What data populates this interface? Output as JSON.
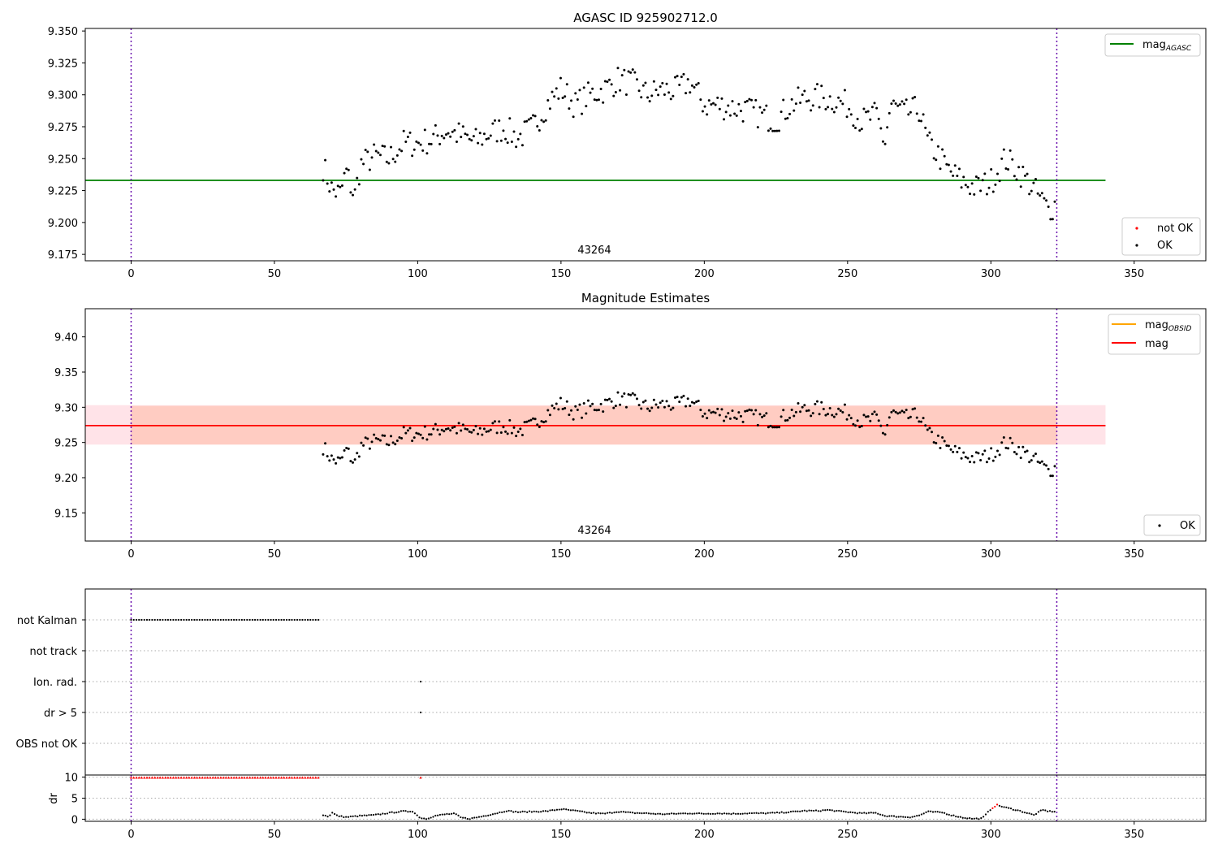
{
  "chart_data": [
    {
      "type": "scatter",
      "title": "AGASC ID 925902712.0",
      "obsid_label": "43264",
      "xlim": [
        -16,
        375
      ],
      "ylim": [
        9.17,
        9.352
      ],
      "xticks": [
        "0",
        "50",
        "100",
        "150",
        "200",
        "250",
        "300",
        "350"
      ],
      "yticks": [
        "9.175",
        "9.200",
        "9.225",
        "9.250",
        "9.275",
        "9.300",
        "9.325",
        "9.350"
      ],
      "vlines_x": [
        0,
        323
      ],
      "hline": {
        "label": "mag",
        "label_sub": "AGASC",
        "y": 9.233,
        "x_range": [
          -16,
          340
        ],
        "color": "#008000"
      },
      "legend_points": [
        {
          "label": "not OK",
          "color": "#ff0000"
        },
        {
          "label": "OK",
          "color": "#000000"
        }
      ],
      "series_ref": "mag_estimates"
    },
    {
      "type": "scatter",
      "title": "Magnitude Estimates",
      "obsid_label": "43264",
      "xlim": [
        -16,
        375
      ],
      "ylim": [
        9.11,
        9.44
      ],
      "xticks": [
        "0",
        "50",
        "100",
        "150",
        "200",
        "250",
        "300",
        "350"
      ],
      "yticks": [
        "9.15",
        "9.20",
        "9.25",
        "9.30",
        "9.35",
        "9.40"
      ],
      "vlines_x": [
        0,
        323
      ],
      "band_outer": {
        "y0": 9.247,
        "y1": 9.303,
        "x_range": [
          -16,
          340
        ],
        "color": "#ffc0cb"
      },
      "band_inner": {
        "y0": 9.247,
        "y1": 9.302,
        "x_range": [
          0,
          323
        ],
        "color": "#ffa07a"
      },
      "lines": [
        {
          "label": "mag",
          "label_sub": "OBSID",
          "y": 9.274,
          "color": "#ffa500"
        },
        {
          "label": "mag",
          "y": 9.274,
          "color": "#ff0000"
        }
      ],
      "legend_points": [
        {
          "label": "OK",
          "color": "#000000"
        }
      ],
      "series_ref": "mag_estimates"
    },
    {
      "type": "scatter",
      "title": "",
      "xlim": [
        -16,
        375
      ],
      "categories": [
        "not Kalman",
        "not track",
        "Ion. rad.",
        "dr > 5",
        "OBS not OK"
      ],
      "flag_points": {
        "not Kalman": {
          "x_start": 0,
          "x_end": 66,
          "step": 0.92
        },
        "Ion. rad.": {
          "x": [
            101
          ]
        },
        "dr > 5": {
          "x": [
            101
          ]
        }
      },
      "vlines_x": [
        0,
        323
      ]
    },
    {
      "type": "scatter",
      "title": "",
      "ylabel": "dr",
      "xlim": [
        -16,
        375
      ],
      "ylim": [
        -0.5,
        10.5
      ],
      "xticks": [
        "0",
        "50",
        "100",
        "150",
        "200",
        "250",
        "300",
        "350"
      ],
      "yticks": [
        "0",
        "5",
        "10"
      ],
      "vlines_x": [
        0,
        323
      ],
      "saturated": {
        "x_start": 0,
        "x_end": 66,
        "step": 0.92,
        "y": 9.9,
        "color": "#ff0000",
        "extra_x": [
          101
        ]
      },
      "dr_segments": [
        [
          67,
          1.0
        ],
        [
          68,
          0.8
        ],
        [
          69,
          0.6
        ],
        [
          70,
          1.6
        ],
        [
          71,
          1.2
        ],
        [
          72,
          0.8
        ],
        [
          75,
          0.5
        ],
        [
          80,
          0.8
        ],
        [
          85,
          1.0
        ],
        [
          90,
          1.5
        ],
        [
          95,
          1.9
        ],
        [
          97,
          1.8
        ],
        [
          98,
          2.0
        ],
        [
          100,
          0.8
        ],
        [
          101,
          0.3
        ],
        [
          103,
          0.1
        ],
        [
          106,
          0.8
        ],
        [
          110,
          1.2
        ],
        [
          113,
          1.3
        ],
        [
          115,
          0.4
        ],
        [
          118,
          0.1
        ],
        [
          122,
          0.6
        ],
        [
          128,
          1.5
        ],
        [
          131,
          2.0
        ],
        [
          135,
          1.7
        ],
        [
          140,
          1.8
        ],
        [
          145,
          1.9
        ],
        [
          150,
          2.4
        ],
        [
          155,
          2.0
        ],
        [
          160,
          1.5
        ],
        [
          165,
          1.3
        ],
        [
          170,
          1.8
        ],
        [
          175,
          1.5
        ],
        [
          180,
          1.4
        ],
        [
          185,
          1.2
        ],
        [
          190,
          1.3
        ],
        [
          195,
          1.4
        ],
        [
          200,
          1.3
        ],
        [
          205,
          1.4
        ],
        [
          210,
          1.3
        ],
        [
          215,
          1.4
        ],
        [
          220,
          1.4
        ],
        [
          225,
          1.5
        ],
        [
          230,
          1.7
        ],
        [
          235,
          2.0
        ],
        [
          240,
          2.0
        ],
        [
          243,
          2.2
        ],
        [
          247,
          1.9
        ],
        [
          250,
          1.7
        ],
        [
          255,
          1.4
        ],
        [
          260,
          1.5
        ],
        [
          263,
          0.8
        ],
        [
          268,
          0.6
        ],
        [
          272,
          0.5
        ],
        [
          275,
          0.9
        ],
        [
          278,
          1.8
        ],
        [
          283,
          1.6
        ],
        [
          286,
          1.0
        ],
        [
          290,
          0.4
        ],
        [
          294,
          0.1
        ],
        [
          297,
          0.2
        ],
        [
          300,
          2.4
        ],
        [
          302,
          3.4
        ],
        [
          305,
          2.8
        ],
        [
          310,
          2.0
        ],
        [
          315,
          1.0
        ],
        [
          318,
          2.2
        ],
        [
          320,
          1.9
        ],
        [
          323,
          1.8
        ]
      ],
      "dr_red_x": [
        301,
        302
      ]
    }
  ],
  "mag_estimates": {
    "x_start": 67,
    "x_end": 323,
    "anchors": [
      [
        67,
        9.244
      ],
      [
        70,
        9.226
      ],
      [
        73,
        9.222
      ],
      [
        75,
        9.24
      ],
      [
        78,
        9.22
      ],
      [
        80,
        9.245
      ],
      [
        85,
        9.252
      ],
      [
        90,
        9.25
      ],
      [
        95,
        9.262
      ],
      [
        100,
        9.262
      ],
      [
        105,
        9.265
      ],
      [
        110,
        9.272
      ],
      [
        115,
        9.268
      ],
      [
        120,
        9.263
      ],
      [
        125,
        9.27
      ],
      [
        130,
        9.274
      ],
      [
        135,
        9.266
      ],
      [
        140,
        9.274
      ],
      [
        145,
        9.292
      ],
      [
        150,
        9.305
      ],
      [
        155,
        9.292
      ],
      [
        160,
        9.3
      ],
      [
        165,
        9.304
      ],
      [
        170,
        9.312
      ],
      [
        175,
        9.309
      ],
      [
        180,
        9.3
      ],
      [
        185,
        9.304
      ],
      [
        190,
        9.303
      ],
      [
        195,
        9.31
      ],
      [
        200,
        9.292
      ],
      [
        205,
        9.292
      ],
      [
        210,
        9.29
      ],
      [
        215,
        9.288
      ],
      [
        220,
        9.284
      ],
      [
        225,
        9.28
      ],
      [
        230,
        9.292
      ],
      [
        235,
        9.297
      ],
      [
        240,
        9.298
      ],
      [
        245,
        9.296
      ],
      [
        250,
        9.292
      ],
      [
        255,
        9.279
      ],
      [
        260,
        9.284
      ],
      [
        263,
        9.262
      ],
      [
        265,
        9.292
      ],
      [
        270,
        9.285
      ],
      [
        275,
        9.289
      ],
      [
        278,
        9.262
      ],
      [
        282,
        9.252
      ],
      [
        285,
        9.241
      ],
      [
        290,
        9.232
      ],
      [
        295,
        9.227
      ],
      [
        300,
        9.232
      ],
      [
        305,
        9.25
      ],
      [
        310,
        9.24
      ],
      [
        315,
        9.226
      ],
      [
        320,
        9.21
      ],
      [
        323,
        9.215
      ]
    ]
  }
}
